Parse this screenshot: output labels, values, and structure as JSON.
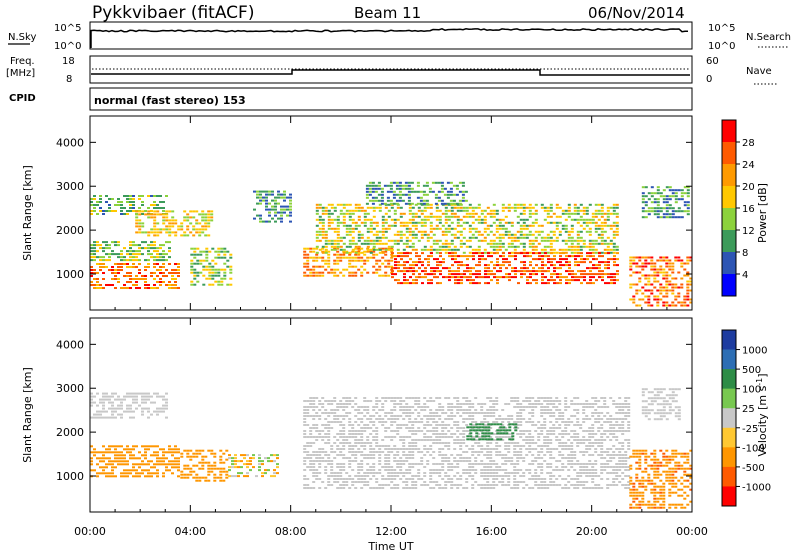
{
  "header": {
    "station": "Pykkvibaer (fitACF)",
    "beam": "Beam 11",
    "date": "06/Nov/2014"
  },
  "strips": {
    "nsky_label": "N.Sky",
    "nsky_ticks": [
      "10^5",
      "10^0"
    ],
    "nsearch_label": "N.Search",
    "freq_label_1": "Freq.",
    "freq_label_2": "[MHz]",
    "freq_ticks": [
      "18",
      "8"
    ],
    "nave_ticks": [
      "60",
      "0"
    ],
    "nave_label": "Nave",
    "cpid_label": "CPID",
    "cpid_text": "normal (fast stereo) 153"
  },
  "colorbars": {
    "power": {
      "label": "Power [dB]",
      "ticks": [
        "28",
        "24",
        "20",
        "16",
        "12",
        "8",
        "4"
      ],
      "colors": [
        "#ff0000",
        "#ff5a00",
        "#ff9a00",
        "#ffc800",
        "#8cd23c",
        "#3c9b5a",
        "#2d55b4",
        "#0000ff"
      ]
    },
    "velocity": {
      "label": "Velocity [m s",
      "label_sup": "-1",
      "label_end": "]",
      "ticks": [
        "1000",
        "500",
        "100",
        "25",
        "-25",
        "-100",
        "-500",
        "-1000"
      ],
      "colors": [
        "#1e3ca0",
        "#2d6eb4",
        "#2d8c46",
        "#78c850",
        "#c8c8c8",
        "#ffc832",
        "#ff9600",
        "#ff5a00",
        "#ff0000"
      ]
    }
  },
  "chart_data": [
    {
      "type": "heatmap",
      "parameter": "power",
      "xlabel": "Time UT",
      "ylabel": "Slant Range [km]",
      "x_ticks": [
        "00:00",
        "04:00",
        "08:00",
        "12:00",
        "16:00",
        "20:00",
        "00:00"
      ],
      "y_ticks": [
        1000,
        2000,
        3000,
        4000
      ],
      "x_range_hours": [
        0,
        24
      ],
      "y_range_km": [
        180,
        4600
      ],
      "regions": [
        {
          "t0": 0.0,
          "t1": 3.5,
          "r0": 650,
          "r1": 1250,
          "value": 24
        },
        {
          "t0": 0.0,
          "t1": 3.2,
          "r0": 1300,
          "r1": 1750,
          "value": 14
        },
        {
          "t0": 0.0,
          "t1": 3.0,
          "r0": 2350,
          "r1": 2800,
          "value": 12
        },
        {
          "t0": 1.8,
          "t1": 4.8,
          "r0": 1900,
          "r1": 2450,
          "value": 18
        },
        {
          "t0": 4.0,
          "t1": 5.6,
          "r0": 750,
          "r1": 1600,
          "value": 14
        },
        {
          "t0": 6.5,
          "t1": 8.0,
          "r0": 2200,
          "r1": 2900,
          "value": 10
        },
        {
          "t0": 8.5,
          "t1": 12.0,
          "r0": 950,
          "r1": 1600,
          "value": 22
        },
        {
          "t0": 9.0,
          "t1": 21.0,
          "r0": 1500,
          "r1": 2600,
          "value": 16
        },
        {
          "t0": 12.0,
          "t1": 21.0,
          "r0": 800,
          "r1": 1500,
          "value": 26
        },
        {
          "t0": 11.0,
          "t1": 15.0,
          "r0": 2600,
          "r1": 3100,
          "value": 10
        },
        {
          "t0": 21.5,
          "t1": 24.0,
          "r0": 300,
          "r1": 1400,
          "value": 24
        },
        {
          "t0": 22.0,
          "t1": 23.8,
          "r0": 2300,
          "r1": 3000,
          "value": 10
        }
      ]
    },
    {
      "type": "heatmap",
      "parameter": "velocity",
      "xlabel": "Time UT",
      "ylabel": "Slant Range [km]",
      "x_ticks": [
        "00:00",
        "04:00",
        "08:00",
        "12:00",
        "16:00",
        "20:00",
        "00:00"
      ],
      "y_ticks": [
        1000,
        2000,
        3000,
        4000
      ],
      "x_range_hours": [
        0,
        24
      ],
      "y_range_km": [
        180,
        4600
      ],
      "regions": [
        {
          "t0": 0.0,
          "t1": 3.5,
          "r0": 950,
          "r1": 1700,
          "value": -300
        },
        {
          "t0": 0.0,
          "t1": 3.0,
          "r0": 2300,
          "r1": 2900,
          "value": 0
        },
        {
          "t0": 3.6,
          "t1": 5.4,
          "r0": 900,
          "r1": 1600,
          "value": -300
        },
        {
          "t0": 5.5,
          "t1": 7.5,
          "r0": 1000,
          "r1": 1500,
          "value": -60
        },
        {
          "t0": 8.5,
          "t1": 21.5,
          "r0": 700,
          "r1": 2800,
          "value": 0
        },
        {
          "t0": 15.0,
          "t1": 17.0,
          "r0": 1800,
          "r1": 2200,
          "value": 300
        },
        {
          "t0": 21.5,
          "t1": 24.0,
          "r0": 300,
          "r1": 1600,
          "value": -400
        },
        {
          "t0": 22.0,
          "t1": 23.5,
          "r0": 2300,
          "r1": 3000,
          "value": 0
        }
      ]
    }
  ]
}
